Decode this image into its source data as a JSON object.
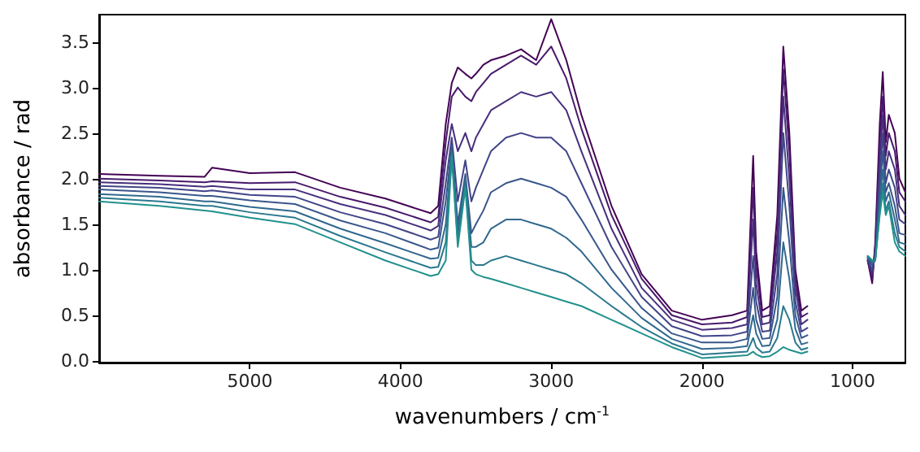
{
  "chart_data": {
    "type": "line",
    "xlabel": "wavenumbers / cm$^{-1}$",
    "ylabel": "absorbance / rad",
    "xlim": [
      6000,
      650
    ],
    "ylim": [
      -0.02,
      3.8
    ],
    "xticks": [
      5000,
      4000,
      3000,
      2000,
      1000
    ],
    "yticks": [
      {
        "value": 0,
        "label": "0.0"
      },
      {
        "value": 0.5,
        "label": "0.5"
      },
      {
        "value": 1,
        "label": "1.0"
      },
      {
        "value": 1.5,
        "label": "1.5"
      },
      {
        "value": 2,
        "label": "2.0"
      },
      {
        "value": 2.5,
        "label": "2.5"
      },
      {
        "value": 3,
        "label": "3.0"
      },
      {
        "value": 3.5,
        "label": "3.5"
      }
    ],
    "grid": false,
    "marker": "none",
    "line_style": "solid",
    "x": [
      6000,
      5600,
      5300,
      5250,
      5000,
      4700,
      4400,
      4100,
      3800,
      3750,
      3700,
      3660,
      3620,
      3570,
      3530,
      3500,
      3450,
      3400,
      3300,
      3200,
      3100,
      3000,
      2900,
      2800,
      2600,
      2400,
      2200,
      2000,
      1800,
      1700,
      1660,
      1640,
      1600,
      1550,
      1500,
      1460,
      1420,
      1380,
      1340,
      1300,
      1250,
      900,
      870,
      850,
      820,
      800,
      780,
      760,
      720,
      690,
      650
    ],
    "series": [
      {
        "color": "#440154",
        "values": [
          2.05,
          2.03,
          2.02,
          2.12,
          2.06,
          2.07,
          1.9,
          1.78,
          1.62,
          1.7,
          2.6,
          3.05,
          3.22,
          3.15,
          3.1,
          3.15,
          3.25,
          3.3,
          3.35,
          3.42,
          3.3,
          3.75,
          3.3,
          2.7,
          1.7,
          0.95,
          0.55,
          0.45,
          0.5,
          0.55,
          2.25,
          1.2,
          0.55,
          0.6,
          1.6,
          3.45,
          2.5,
          1.0,
          0.55,
          0.6,
          null,
          1.1,
          0.85,
          1.3,
          2.6,
          3.17,
          2.4,
          2.7,
          2.5,
          2.0,
          1.85
        ]
      },
      {
        "color": "#481a6c",
        "values": [
          2.0,
          1.98,
          1.96,
          1.97,
          1.95,
          1.96,
          1.8,
          1.68,
          1.52,
          1.58,
          2.4,
          2.9,
          3.0,
          2.9,
          2.85,
          2.95,
          3.05,
          3.15,
          3.25,
          3.35,
          3.25,
          3.45,
          3.1,
          2.55,
          1.6,
          0.9,
          0.5,
          0.4,
          0.42,
          0.48,
          1.9,
          1.05,
          0.48,
          0.5,
          1.4,
          3.2,
          2.3,
          0.9,
          0.48,
          0.52,
          null,
          1.1,
          0.9,
          1.25,
          2.4,
          2.9,
          2.25,
          2.5,
          2.3,
          1.85,
          1.75
        ]
      },
      {
        "color": "#472f7d",
        "values": [
          1.96,
          1.94,
          1.91,
          1.92,
          1.88,
          1.88,
          1.72,
          1.6,
          1.43,
          1.48,
          2.2,
          2.6,
          2.3,
          2.5,
          2.3,
          2.45,
          2.6,
          2.75,
          2.85,
          2.95,
          2.9,
          2.95,
          2.75,
          2.3,
          1.45,
          0.8,
          0.45,
          0.34,
          0.36,
          0.4,
          1.55,
          0.85,
          0.4,
          0.42,
          1.2,
          2.9,
          2.0,
          0.8,
          0.4,
          0.45,
          null,
          1.1,
          0.95,
          1.2,
          2.2,
          2.7,
          2.1,
          2.3,
          2.1,
          1.7,
          1.6
        ]
      },
      {
        "color": "#414487",
        "values": [
          1.92,
          1.9,
          1.86,
          1.87,
          1.82,
          1.8,
          1.63,
          1.5,
          1.33,
          1.36,
          1.95,
          2.45,
          1.75,
          2.2,
          1.75,
          1.9,
          2.1,
          2.3,
          2.45,
          2.5,
          2.45,
          2.45,
          2.3,
          1.95,
          1.25,
          0.7,
          0.38,
          0.27,
          0.28,
          0.32,
          1.15,
          0.65,
          0.32,
          0.33,
          0.95,
          2.5,
          1.7,
          0.65,
          0.32,
          0.36,
          null,
          1.12,
          1.0,
          1.15,
          2.0,
          2.5,
          1.95,
          2.1,
          1.9,
          1.55,
          1.5
        ]
      },
      {
        "color": "#39568c",
        "values": [
          1.88,
          1.85,
          1.81,
          1.81,
          1.76,
          1.72,
          1.54,
          1.4,
          1.22,
          1.24,
          1.75,
          2.35,
          1.5,
          2.05,
          1.4,
          1.5,
          1.65,
          1.85,
          1.95,
          2.0,
          1.95,
          1.9,
          1.8,
          1.55,
          1.0,
          0.58,
          0.3,
          0.2,
          0.2,
          0.24,
          0.8,
          0.45,
          0.24,
          0.25,
          0.7,
          1.9,
          1.3,
          0.5,
          0.25,
          0.28,
          null,
          1.13,
          1.05,
          1.12,
          1.85,
          2.3,
          1.85,
          1.95,
          1.7,
          1.4,
          1.38
        ]
      },
      {
        "color": "#31688e",
        "values": [
          1.83,
          1.8,
          1.75,
          1.75,
          1.69,
          1.64,
          1.45,
          1.29,
          1.12,
          1.13,
          1.5,
          2.3,
          1.4,
          2.0,
          1.25,
          1.25,
          1.3,
          1.45,
          1.55,
          1.55,
          1.5,
          1.45,
          1.35,
          1.2,
          0.8,
          0.47,
          0.24,
          0.13,
          0.14,
          0.16,
          0.5,
          0.3,
          0.16,
          0.17,
          0.45,
          1.3,
          0.9,
          0.35,
          0.18,
          0.2,
          null,
          1.14,
          1.08,
          1.1,
          1.75,
          2.1,
          1.75,
          1.85,
          1.55,
          1.3,
          1.28
        ]
      },
      {
        "color": "#2a788e",
        "values": [
          1.79,
          1.75,
          1.7,
          1.7,
          1.63,
          1.57,
          1.37,
          1.19,
          1.02,
          1.03,
          1.3,
          2.27,
          1.3,
          1.95,
          1.1,
          1.05,
          1.05,
          1.1,
          1.15,
          1.1,
          1.05,
          1.0,
          0.95,
          0.85,
          0.6,
          0.37,
          0.19,
          0.07,
          0.09,
          0.1,
          0.25,
          0.15,
          0.09,
          0.1,
          0.25,
          0.6,
          0.45,
          0.2,
          0.12,
          0.14,
          null,
          1.15,
          1.1,
          1.1,
          1.65,
          1.95,
          1.65,
          1.75,
          1.4,
          1.25,
          1.2
        ]
      },
      {
        "color": "#21918c",
        "values": [
          1.75,
          1.7,
          1.65,
          1.64,
          1.57,
          1.5,
          1.3,
          1.1,
          0.93,
          0.95,
          1.1,
          2.25,
          1.25,
          1.9,
          1.0,
          0.95,
          0.92,
          0.9,
          0.85,
          0.8,
          0.75,
          0.7,
          0.65,
          0.6,
          0.45,
          0.3,
          0.15,
          0.03,
          0.05,
          0.06,
          0.1,
          0.07,
          0.04,
          0.05,
          0.1,
          0.15,
          0.12,
          0.1,
          0.08,
          0.1,
          null,
          1.15,
          1.1,
          1.1,
          1.6,
          1.85,
          1.6,
          1.7,
          1.3,
          1.2,
          1.15
        ]
      }
    ]
  }
}
